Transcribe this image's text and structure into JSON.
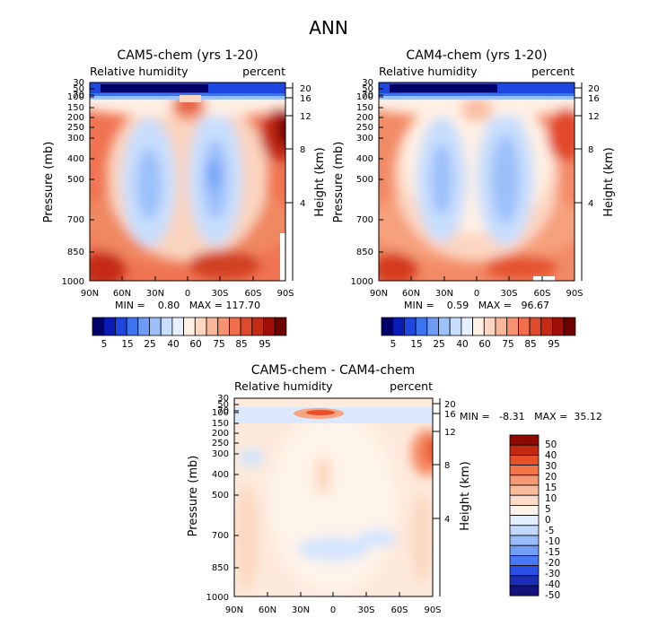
{
  "figure": {
    "title": "ANN"
  },
  "colors": {
    "abs_scale": [
      "#00006a",
      "#0a1cb8",
      "#1e46e0",
      "#3c74f0",
      "#6c9cf6",
      "#9cc0fa",
      "#c8defd",
      "#e6f0fe",
      "#fff0e4",
      "#fcd6c2",
      "#fab698",
      "#f79270",
      "#f06e4c",
      "#e04a2c",
      "#c42a14",
      "#a01008",
      "#700000"
    ],
    "diff_scale": [
      "#12127a",
      "#1a2eb8",
      "#2a4ee6",
      "#4a78f6",
      "#739ef8",
      "#9bbcfa",
      "#c2d8fc",
      "#e2edfe",
      "#fff4ea",
      "#fcdcc8",
      "#f9bc9c",
      "#f69872",
      "#f27448",
      "#e8502a",
      "#c42a12",
      "#8e0a00"
    ]
  },
  "chart_data": [
    {
      "type": "heatmap",
      "name": "cam5",
      "title": "CAM5-chem (yrs 1-20)",
      "left_label": "Relative humidity",
      "right_label": "percent",
      "ylabel": "Pressure (mb)",
      "ylabel_right": "Height (km)",
      "x_ticks": [
        "90N",
        "60N",
        "30N",
        "0",
        "30S",
        "60S",
        "90S"
      ],
      "x_values": [
        90,
        60,
        30,
        0,
        -30,
        -60,
        -90
      ],
      "y_ticks": [
        30,
        50,
        70,
        100,
        150,
        200,
        250,
        300,
        400,
        500,
        700,
        850,
        1000
      ],
      "height_ticks": [
        20,
        16,
        12,
        8,
        4
      ],
      "min_text": "MIN =    0.80   MAX = 117.70",
      "colorbar_labels": [
        "5",
        "15",
        "25",
        "40",
        "60",
        "75",
        "85",
        "95"
      ]
    },
    {
      "type": "heatmap",
      "name": "cam4",
      "title": "CAM4-chem (yrs 1-20)",
      "left_label": "Relative humidity",
      "right_label": "percent",
      "ylabel": "Pressure (mb)",
      "ylabel_right": "Height (km)",
      "x_ticks": [
        "90N",
        "60N",
        "30N",
        "0",
        "30S",
        "60S",
        "90S"
      ],
      "x_values": [
        90,
        60,
        30,
        0,
        -30,
        -60,
        -90
      ],
      "y_ticks": [
        30,
        50,
        70,
        100,
        150,
        200,
        250,
        300,
        400,
        500,
        700,
        850,
        1000
      ],
      "height_ticks": [
        20,
        16,
        12,
        8,
        4
      ],
      "min_text": "MIN =    0.59   MAX =   96.67",
      "colorbar_labels": [
        "5",
        "15",
        "25",
        "40",
        "60",
        "75",
        "85",
        "95"
      ]
    },
    {
      "type": "heatmap",
      "name": "diff",
      "title": "CAM5-chem - CAM4-chem",
      "left_label": "Relative humidity",
      "right_label": "percent",
      "ylabel": "Pressure (mb)",
      "ylabel_right": "Height (km)",
      "x_ticks": [
        "90N",
        "60N",
        "30N",
        "0",
        "30S",
        "60S",
        "90S"
      ],
      "x_values": [
        90,
        60,
        30,
        0,
        -30,
        -60,
        -90
      ],
      "y_ticks": [
        30,
        50,
        70,
        100,
        150,
        200,
        250,
        300,
        400,
        500,
        700,
        850,
        1000
      ],
      "height_ticks": [
        20,
        16,
        12,
        8,
        4
      ],
      "min_text": "MIN =   -8.31   MAX =  35.12",
      "colorbar_labels": [
        "50",
        "40",
        "30",
        "20",
        "15",
        "10",
        "5",
        "0",
        "-5",
        "-10",
        "-15",
        "-20",
        "-30",
        "-40",
        "-50"
      ]
    }
  ]
}
